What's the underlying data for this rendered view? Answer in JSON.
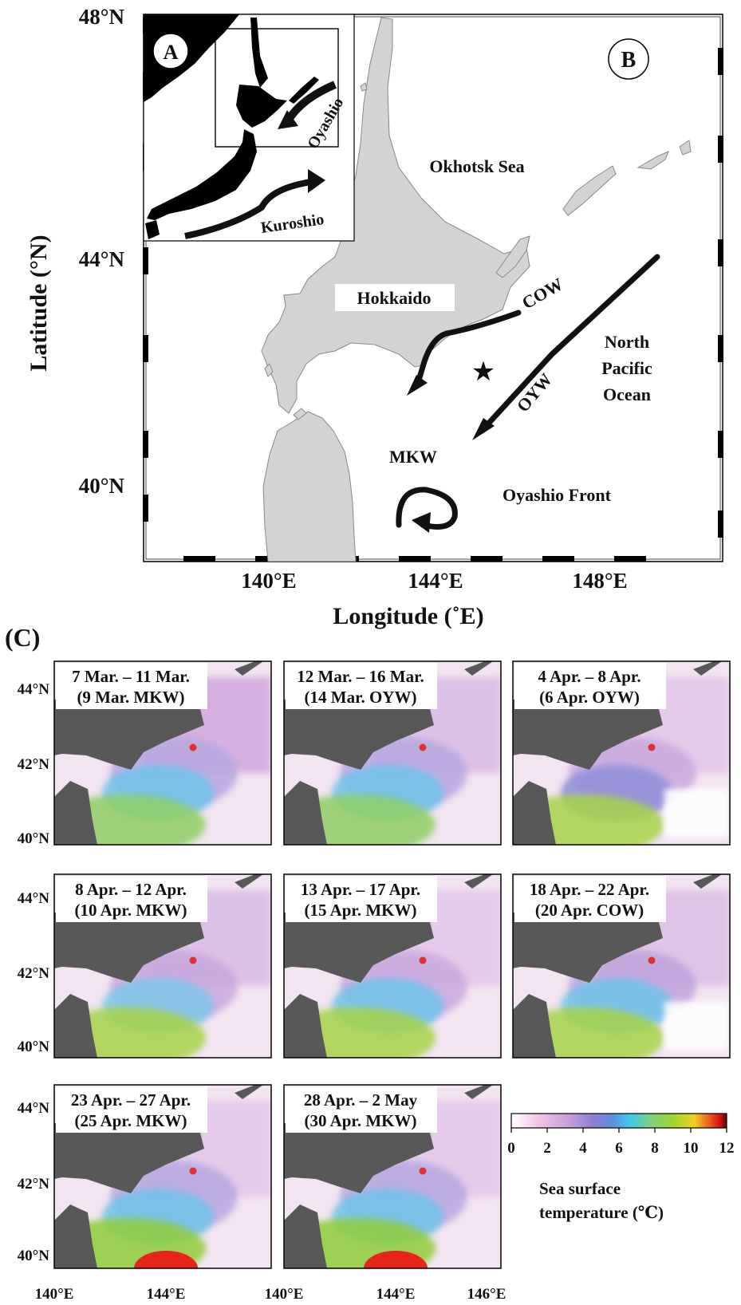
{
  "panel_b": {
    "label_a": "A",
    "label_b": "B",
    "y_ticks": [
      "48°N",
      "44°N",
      "40°N"
    ],
    "x_ticks": [
      "140°E",
      "144°E",
      "148°E"
    ],
    "y_axis_title": "Latitude (°N)",
    "x_axis_title": "Longitude (˚E)",
    "places": {
      "okhotsk": "Okhotsk Sea",
      "hokkaido": "Hokkaido",
      "npo_1": "North",
      "npo_2": "Pacific",
      "npo_3": "Ocean",
      "front": "Oyashio Front"
    },
    "currents": {
      "oyashio": "Oyashio",
      "kuroshio": "Kuroshio",
      "cow": "COW",
      "oyw": "OYW",
      "mkw": "MKW"
    },
    "colors": {
      "land": "#d3d3d3",
      "inset_land": "#000000",
      "arrow": "#111111"
    }
  },
  "panel_c": {
    "label": "(C)",
    "panels": [
      {
        "line1": "7 Mar. – 11 Mar.",
        "line2": "(9 Mar. MKW)"
      },
      {
        "line1": "12 Mar. – 16 Mar.",
        "line2": "(14 Mar. OYW)"
      },
      {
        "line1": "4 Apr. – 8 Apr.",
        "line2": "(6 Apr. OYW)"
      },
      {
        "line1": "8 Apr. – 12 Apr.",
        "line2": "(10 Apr. MKW)"
      },
      {
        "line1": "13 Apr. – 17 Apr.",
        "line2": "(15 Apr. MKW)"
      },
      {
        "line1": "18 Apr. – 22 Apr.",
        "line2": "(20 Apr. COW)"
      },
      {
        "line1": "23 Apr. – 27 Apr.",
        "line2": "(25 Apr. MKW)"
      },
      {
        "line1": "28 Apr. – 2 May",
        "line2": "(30 Apr. MKW)"
      }
    ],
    "y_ticks": [
      "44°N",
      "42°N",
      "40°N"
    ],
    "x_ticks": [
      "140°E",
      "144°E",
      "140°E",
      "144°E",
      "146°E"
    ],
    "colorbar": {
      "ticks": [
        "0",
        "2",
        "4",
        "6",
        "8",
        "10",
        "12"
      ],
      "title_1": "Sea surface",
      "title_2": "temperature (℃)",
      "stops": [
        "#ffffff",
        "#f3c6e6",
        "#cfa2dd",
        "#8f7fd4",
        "#5d8fe0",
        "#3fc8ec",
        "#7fd07a",
        "#9fd533",
        "#f0d020",
        "#ec5a20",
        "#d40f0f",
        "#5a0a0a"
      ]
    },
    "colors": {
      "land": "#585858",
      "site": "#e03030"
    }
  }
}
